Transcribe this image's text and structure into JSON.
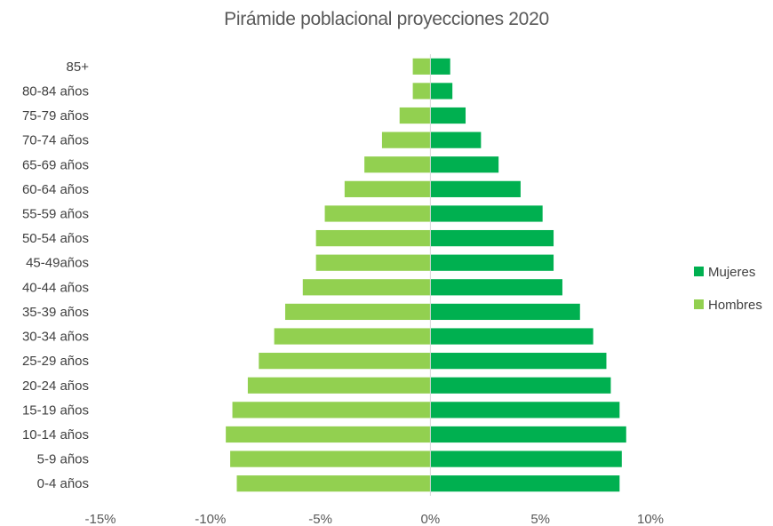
{
  "chart_data": {
    "type": "bar",
    "title": "Pirámide poblacional proyecciones 2020",
    "orientation": "horizontal",
    "categories": [
      "85+",
      "80-84 años",
      "75-79 años",
      "70-74 años",
      "65-69 años",
      "60-64 años",
      "55-59 años",
      "50-54 años",
      "45-49años",
      "40-44 años",
      "35-39 años",
      "30-34 años",
      "25-29 años",
      "20-24 años",
      "15-19 años",
      "10-14 años",
      "5-9 años",
      "0-4 años"
    ],
    "series": [
      {
        "name": "Mujeres",
        "color": "#00b050",
        "values": [
          0.9,
          1.0,
          1.6,
          2.3,
          3.1,
          4.1,
          5.1,
          5.6,
          5.6,
          6.0,
          6.8,
          7.4,
          8.0,
          8.2,
          8.6,
          8.9,
          8.7,
          8.6
        ]
      },
      {
        "name": "Hombres",
        "color": "#92d050",
        "values": [
          -0.8,
          -0.8,
          -1.4,
          -2.2,
          -3.0,
          -3.9,
          -4.8,
          -5.2,
          -5.2,
          -5.8,
          -6.6,
          -7.1,
          -7.8,
          -8.3,
          -9.0,
          -9.3,
          -9.1,
          -8.8
        ]
      }
    ],
    "xlim": [
      -15,
      10
    ],
    "xticks": [
      -15,
      -10,
      -5,
      0,
      5,
      10
    ],
    "xtick_labels": [
      "-15%",
      "-10%",
      "-5%",
      "0%",
      "5%",
      "10%"
    ],
    "grid": false,
    "legend_position": "right"
  }
}
